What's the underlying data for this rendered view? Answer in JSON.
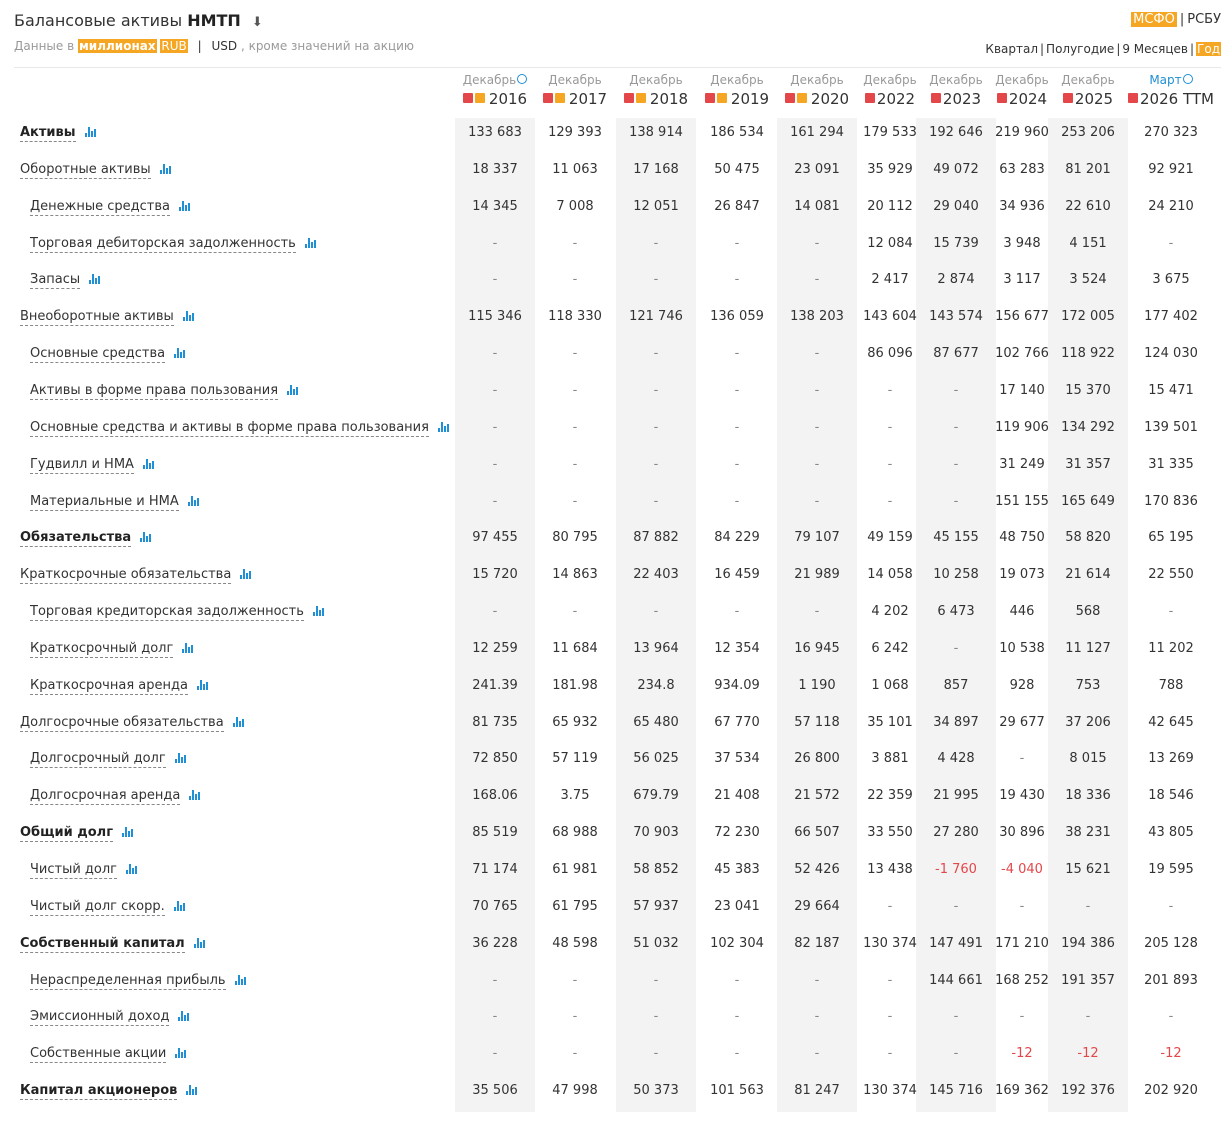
{
  "header": {
    "title_prefix": "Балансовые активы",
    "ticker": "НМТП",
    "subtitle_prefix": "Данные в",
    "unit": "миллионах",
    "currency_rub": "RUB",
    "currency_usd": "USD",
    "subtitle_suffix": ", кроме значений на акцию"
  },
  "standards": {
    "ifrs": "МСФО",
    "ras": "РСБУ"
  },
  "periods": {
    "quarter": "Квартал",
    "half": "Полугодие",
    "nine": "9 Месяцев",
    "year": "Год"
  },
  "columns": [
    {
      "month": "Декабрь",
      "year": "2016"
    },
    {
      "month": "Декабрь",
      "year": "2017"
    },
    {
      "month": "Декабрь",
      "year": "2018"
    },
    {
      "month": "Декабрь",
      "year": "2019"
    },
    {
      "month": "Декабрь",
      "year": "2020"
    },
    {
      "month": "Декабрь",
      "year": "2022"
    },
    {
      "month": "Декабрь",
      "year": "2023"
    },
    {
      "month": "Декабрь",
      "year": "2024"
    },
    {
      "month": "Декабрь",
      "year": "2025"
    },
    {
      "month": "Март",
      "year": "2026 TTM"
    }
  ],
  "rows": [
    {
      "label": "Активы",
      "bold": true,
      "indent": false,
      "values": [
        "133 683",
        "129 393",
        "138 914",
        "186 534",
        "161 294",
        "179 533",
        "192 646",
        "219 960",
        "253 206",
        "270 323"
      ]
    },
    {
      "label": "Оборотные активы",
      "bold": false,
      "indent": false,
      "values": [
        "18 337",
        "11 063",
        "17 168",
        "50 475",
        "23 091",
        "35 929",
        "49 072",
        "63 283",
        "81 201",
        "92 921"
      ]
    },
    {
      "label": "Денежные средства",
      "bold": false,
      "indent": true,
      "values": [
        "14 345",
        "7 008",
        "12 051",
        "26 847",
        "14 081",
        "20 112",
        "29 040",
        "34 936",
        "22 610",
        "24 210"
      ]
    },
    {
      "label": "Торговая дебиторская задолженность",
      "bold": false,
      "indent": true,
      "values": [
        "-",
        "-",
        "-",
        "-",
        "-",
        "12 084",
        "15 739",
        "3 948",
        "4 151",
        "-"
      ]
    },
    {
      "label": "Запасы",
      "bold": false,
      "indent": true,
      "values": [
        "-",
        "-",
        "-",
        "-",
        "-",
        "2 417",
        "2 874",
        "3 117",
        "3 524",
        "3 675"
      ]
    },
    {
      "label": "Внеоборотные активы",
      "bold": false,
      "indent": false,
      "values": [
        "115 346",
        "118 330",
        "121 746",
        "136 059",
        "138 203",
        "143 604",
        "143 574",
        "156 677",
        "172 005",
        "177 402"
      ]
    },
    {
      "label": "Основные средства",
      "bold": false,
      "indent": true,
      "values": [
        "-",
        "-",
        "-",
        "-",
        "-",
        "86 096",
        "87 677",
        "102 766",
        "118 922",
        "124 030"
      ]
    },
    {
      "label": "Активы в форме права пользования",
      "bold": false,
      "indent": true,
      "values": [
        "-",
        "-",
        "-",
        "-",
        "-",
        "-",
        "-",
        "17 140",
        "15 370",
        "15 471"
      ]
    },
    {
      "label": "Основные средства и активы в форме права пользования",
      "bold": false,
      "indent": true,
      "values": [
        "-",
        "-",
        "-",
        "-",
        "-",
        "-",
        "-",
        "119 906",
        "134 292",
        "139 501"
      ]
    },
    {
      "label": "Гудвилл и НМА",
      "bold": false,
      "indent": true,
      "values": [
        "-",
        "-",
        "-",
        "-",
        "-",
        "-",
        "-",
        "31 249",
        "31 357",
        "31 335"
      ]
    },
    {
      "label": "Материальные и НМА",
      "bold": false,
      "indent": true,
      "values": [
        "-",
        "-",
        "-",
        "-",
        "-",
        "-",
        "-",
        "151 155",
        "165 649",
        "170 836"
      ]
    },
    {
      "label": "Обязательства",
      "bold": true,
      "indent": false,
      "values": [
        "97 455",
        "80 795",
        "87 882",
        "84 229",
        "79 107",
        "49 159",
        "45 155",
        "48 750",
        "58 820",
        "65 195"
      ]
    },
    {
      "label": "Краткосрочные обязательства",
      "bold": false,
      "indent": false,
      "values": [
        "15 720",
        "14 863",
        "22 403",
        "16 459",
        "21 989",
        "14 058",
        "10 258",
        "19 073",
        "21 614",
        "22 550"
      ]
    },
    {
      "label": "Торговая кредиторская задолженность",
      "bold": false,
      "indent": true,
      "values": [
        "-",
        "-",
        "-",
        "-",
        "-",
        "4 202",
        "6 473",
        "446",
        "568",
        "-"
      ]
    },
    {
      "label": "Краткосрочный долг",
      "bold": false,
      "indent": true,
      "values": [
        "12 259",
        "11 684",
        "13 964",
        "12 354",
        "16 945",
        "6 242",
        "-",
        "10 538",
        "11 127",
        "11 202"
      ]
    },
    {
      "label": "Краткосрочная аренда",
      "bold": false,
      "indent": true,
      "values": [
        "241.39",
        "181.98",
        "234.8",
        "934.09",
        "1 190",
        "1 068",
        "857",
        "928",
        "753",
        "788"
      ]
    },
    {
      "label": "Долгосрочные обязательства",
      "bold": false,
      "indent": false,
      "values": [
        "81 735",
        "65 932",
        "65 480",
        "67 770",
        "57 118",
        "35 101",
        "34 897",
        "29 677",
        "37 206",
        "42 645"
      ]
    },
    {
      "label": "Долгосрочный долг",
      "bold": false,
      "indent": true,
      "values": [
        "72 850",
        "57 119",
        "56 025",
        "37 534",
        "26 800",
        "3 881",
        "4 428",
        "-",
        "8 015",
        "13 269"
      ]
    },
    {
      "label": "Долгосрочная аренда",
      "bold": false,
      "indent": true,
      "values": [
        "168.06",
        "3.75",
        "679.79",
        "21 408",
        "21 572",
        "22 359",
        "21 995",
        "19 430",
        "18 336",
        "18 546"
      ]
    },
    {
      "label": "Общий долг",
      "bold": true,
      "indent": false,
      "values": [
        "85 519",
        "68 988",
        "70 903",
        "72 230",
        "66 507",
        "33 550",
        "27 280",
        "30 896",
        "38 231",
        "43 805"
      ]
    },
    {
      "label": "Чистый долг",
      "bold": false,
      "indent": true,
      "values": [
        "71 174",
        "61 981",
        "58 852",
        "45 383",
        "52 426",
        "13 438",
        "-1 760",
        "-4 040",
        "15 621",
        "19 595"
      ]
    },
    {
      "label": "Чистый долг скорр.",
      "bold": false,
      "indent": true,
      "values": [
        "70 765",
        "61 795",
        "57 937",
        "23 041",
        "29 664",
        "-",
        "-",
        "-",
        "-",
        "-"
      ]
    },
    {
      "label": "Собственный капитал",
      "bold": true,
      "indent": false,
      "values": [
        "36 228",
        "48 598",
        "51 032",
        "102 304",
        "82 187",
        "130 374",
        "147 491",
        "171 210",
        "194 386",
        "205 128"
      ]
    },
    {
      "label": "Нераспределенная прибыль",
      "bold": false,
      "indent": true,
      "values": [
        "-",
        "-",
        "-",
        "-",
        "-",
        "-",
        "144 661",
        "168 252",
        "191 357",
        "201 893"
      ]
    },
    {
      "label": "Эмиссионный доход",
      "bold": false,
      "indent": true,
      "values": [
        "-",
        "-",
        "-",
        "-",
        "-",
        "-",
        "-",
        "-",
        "-",
        "-"
      ]
    },
    {
      "label": "Собственные акции",
      "bold": false,
      "indent": true,
      "values": [
        "-",
        "-",
        "-",
        "-",
        "-",
        "-",
        "-",
        "-12",
        "-12",
        "-12"
      ]
    },
    {
      "label": "Капитал акционеров",
      "bold": true,
      "indent": false,
      "values": [
        "35 506",
        "47 998",
        "50 373",
        "101 563",
        "81 247",
        "130 374",
        "145 716",
        "169 362",
        "192 376",
        "202 920"
      ]
    }
  ],
  "colors": {
    "accent": "#f5a623",
    "negative": "#e4474a",
    "link": "#1f8fd6"
  },
  "icons": {
    "download": "download-icon",
    "chart": "bar-chart-icon",
    "pdf": "pdf-icon",
    "report": "report-icon",
    "info": "info-icon"
  }
}
